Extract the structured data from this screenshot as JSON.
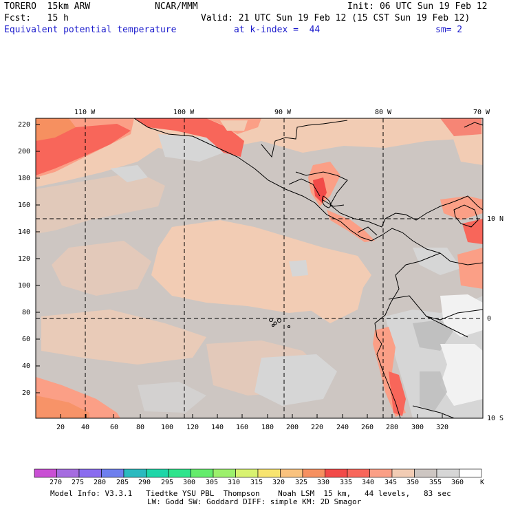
{
  "header": {
    "model": "TORERO  15km ARW",
    "org": "NCAR/MMM",
    "init": "Init: 06 UTC Sun 19 Feb 12",
    "fcst": "Fcst:   15 h",
    "valid": "Valid: 21 UTC Sun 19 Feb 12 (15 CST Sun 19 Feb 12)",
    "field": "Equivalent potential temperature",
    "level": "at k-index =  44",
    "smooth": "sm= 2"
  },
  "map": {
    "top_lon_labels": [
      "110 W",
      "100 W",
      "90 W",
      "80 W",
      "70 W"
    ],
    "right_lat_labels": [
      "10 N",
      "0",
      "10 S"
    ],
    "y_ticks": [
      "220",
      "200",
      "180",
      "160",
      "140",
      "120",
      "100",
      "80",
      "60",
      "40",
      "20"
    ],
    "x_ticks": [
      "20",
      "40",
      "60",
      "80",
      "100",
      "120",
      "140",
      "160",
      "180",
      "200",
      "220",
      "240",
      "260",
      "280",
      "300",
      "320"
    ],
    "colors": {
      "bg_gray": "#cdc6c2",
      "light_gray": "#d6d6d6",
      "peach": "#f2ccb4",
      "salmon": "#fb9f86",
      "red_orange": "#f8665a",
      "deep_red": "#f24a48",
      "orange": "#f69060",
      "white": "#f2f2f2",
      "mid_gray": "#c0c0c0"
    }
  },
  "colorbar": {
    "labels": [
      "270",
      "275",
      "280",
      "285",
      "290",
      "295",
      "300",
      "305",
      "310",
      "315",
      "320",
      "325",
      "330",
      "335",
      "340",
      "345",
      "350",
      "355",
      "360"
    ],
    "unit": "K",
    "colors": [
      "#c94fd4",
      "#a56ce0",
      "#8a6cef",
      "#6e7fee",
      "#2bbabf",
      "#1ed6a8",
      "#2ee48c",
      "#64ec6c",
      "#9cf06c",
      "#d8f270",
      "#f8e46e",
      "#f9c27e",
      "#f69060",
      "#f24a48",
      "#f8665a",
      "#fb9f86",
      "#f2ccb4",
      "#cdc6c2",
      "#d6d6d6",
      "#ffffff"
    ]
  },
  "footer": {
    "line1": "Model Info: V3.3.1   Tiedtke YSU PBL  Thompson    Noah LSM  15 km,   44 levels,   83 sec",
    "line2": "LW: Godd SW: Goddard DIFF: simple KM: 2D Smagor"
  }
}
